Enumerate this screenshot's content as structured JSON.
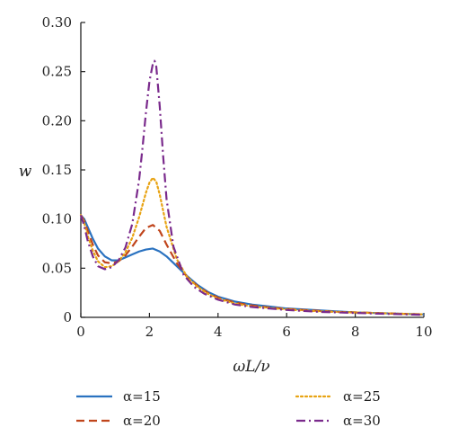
{
  "chart_data": {
    "type": "line",
    "title": "",
    "xlabel": "ωL/ν",
    "ylabel": "w",
    "xlim": [
      0,
      10
    ],
    "ylim": [
      0,
      0.3
    ],
    "xticks": [
      0,
      2,
      4,
      6,
      8,
      10
    ],
    "yticks": [
      0,
      0.05,
      0.1,
      0.15,
      0.2,
      0.25,
      0.3
    ],
    "xtick_labels": [
      "0",
      "2",
      "4",
      "6",
      "8",
      "10"
    ],
    "ytick_labels": [
      "0",
      "0.05",
      "0.10",
      "0.15",
      "0.20",
      "0.25",
      "0.30"
    ],
    "grid": false,
    "legend_position": "bottom",
    "series": [
      {
        "name": "α=15",
        "color": "#2a72c0",
        "dash": "solid",
        "x": [
          0,
          0.1,
          0.2,
          0.35,
          0.5,
          0.7,
          0.9,
          1.1,
          1.3,
          1.5,
          1.7,
          1.9,
          2.1,
          2.3,
          2.5,
          2.8,
          3.1,
          3.4,
          3.7,
          4.0,
          4.5,
          5.0,
          5.5,
          6.0,
          6.5,
          7.0,
          7.5,
          8.0,
          8.5,
          9.0,
          9.5,
          10.0
        ],
        "y": [
          0.104,
          0.1,
          0.092,
          0.08,
          0.07,
          0.062,
          0.058,
          0.058,
          0.061,
          0.064,
          0.067,
          0.069,
          0.07,
          0.067,
          0.062,
          0.052,
          0.042,
          0.033,
          0.026,
          0.021,
          0.016,
          0.013,
          0.011,
          0.009,
          0.008,
          0.007,
          0.006,
          0.005,
          0.0045,
          0.004,
          0.0035,
          0.003
        ]
      },
      {
        "name": "α=20",
        "color": "#c0451c",
        "dash": "dashed",
        "x": [
          0,
          0.1,
          0.2,
          0.35,
          0.5,
          0.7,
          0.9,
          1.1,
          1.3,
          1.5,
          1.7,
          1.9,
          2.1,
          2.3,
          2.5,
          2.8,
          3.1,
          3.4,
          3.7,
          4.0,
          4.5,
          5.0,
          5.5,
          6.0,
          6.5,
          7.0,
          7.5,
          8.0,
          8.5,
          9.0,
          9.5,
          10.0
        ],
        "y": [
          0.104,
          0.098,
          0.088,
          0.074,
          0.063,
          0.056,
          0.055,
          0.057,
          0.063,
          0.072,
          0.082,
          0.091,
          0.094,
          0.088,
          0.074,
          0.055,
          0.041,
          0.032,
          0.025,
          0.02,
          0.015,
          0.012,
          0.01,
          0.0085,
          0.0075,
          0.0065,
          0.0055,
          0.005,
          0.0045,
          0.004,
          0.0035,
          0.003
        ]
      },
      {
        "name": "α=25",
        "color": "#e8a313",
        "dash": "dotted",
        "x": [
          0,
          0.1,
          0.2,
          0.35,
          0.5,
          0.7,
          0.9,
          1.1,
          1.3,
          1.5,
          1.7,
          1.9,
          2.0,
          2.1,
          2.2,
          2.3,
          2.5,
          2.8,
          3.1,
          3.4,
          3.7,
          4.0,
          4.5,
          5.0,
          5.5,
          6.0,
          6.5,
          7.0,
          7.5,
          8.0,
          8.5,
          9.0,
          9.5,
          10.0
        ],
        "y": [
          0.104,
          0.096,
          0.083,
          0.068,
          0.057,
          0.051,
          0.052,
          0.057,
          0.066,
          0.081,
          0.102,
          0.127,
          0.137,
          0.142,
          0.138,
          0.125,
          0.092,
          0.059,
          0.041,
          0.031,
          0.024,
          0.019,
          0.014,
          0.011,
          0.0095,
          0.008,
          0.007,
          0.006,
          0.0055,
          0.005,
          0.0045,
          0.004,
          0.0035,
          0.003
        ]
      },
      {
        "name": "α=30",
        "color": "#7a2a8c",
        "dash": "dashdot",
        "x": [
          0,
          0.1,
          0.2,
          0.35,
          0.5,
          0.7,
          0.9,
          1.1,
          1.3,
          1.5,
          1.7,
          1.8,
          1.9,
          2.0,
          2.1,
          2.15,
          2.2,
          2.3,
          2.4,
          2.5,
          2.7,
          3.0,
          3.3,
          3.6,
          4.0,
          4.5,
          5.0,
          5.5,
          6.0,
          6.5,
          7.0,
          7.5,
          8.0,
          8.5,
          9.0,
          9.5,
          10.0
        ],
        "y": [
          0.104,
          0.093,
          0.078,
          0.062,
          0.052,
          0.049,
          0.051,
          0.058,
          0.071,
          0.095,
          0.14,
          0.173,
          0.209,
          0.24,
          0.258,
          0.261,
          0.255,
          0.215,
          0.164,
          0.12,
          0.072,
          0.043,
          0.031,
          0.024,
          0.018,
          0.013,
          0.0105,
          0.009,
          0.0075,
          0.0065,
          0.0055,
          0.005,
          0.0045,
          0.004,
          0.0035,
          0.003,
          0.0025
        ]
      }
    ]
  }
}
